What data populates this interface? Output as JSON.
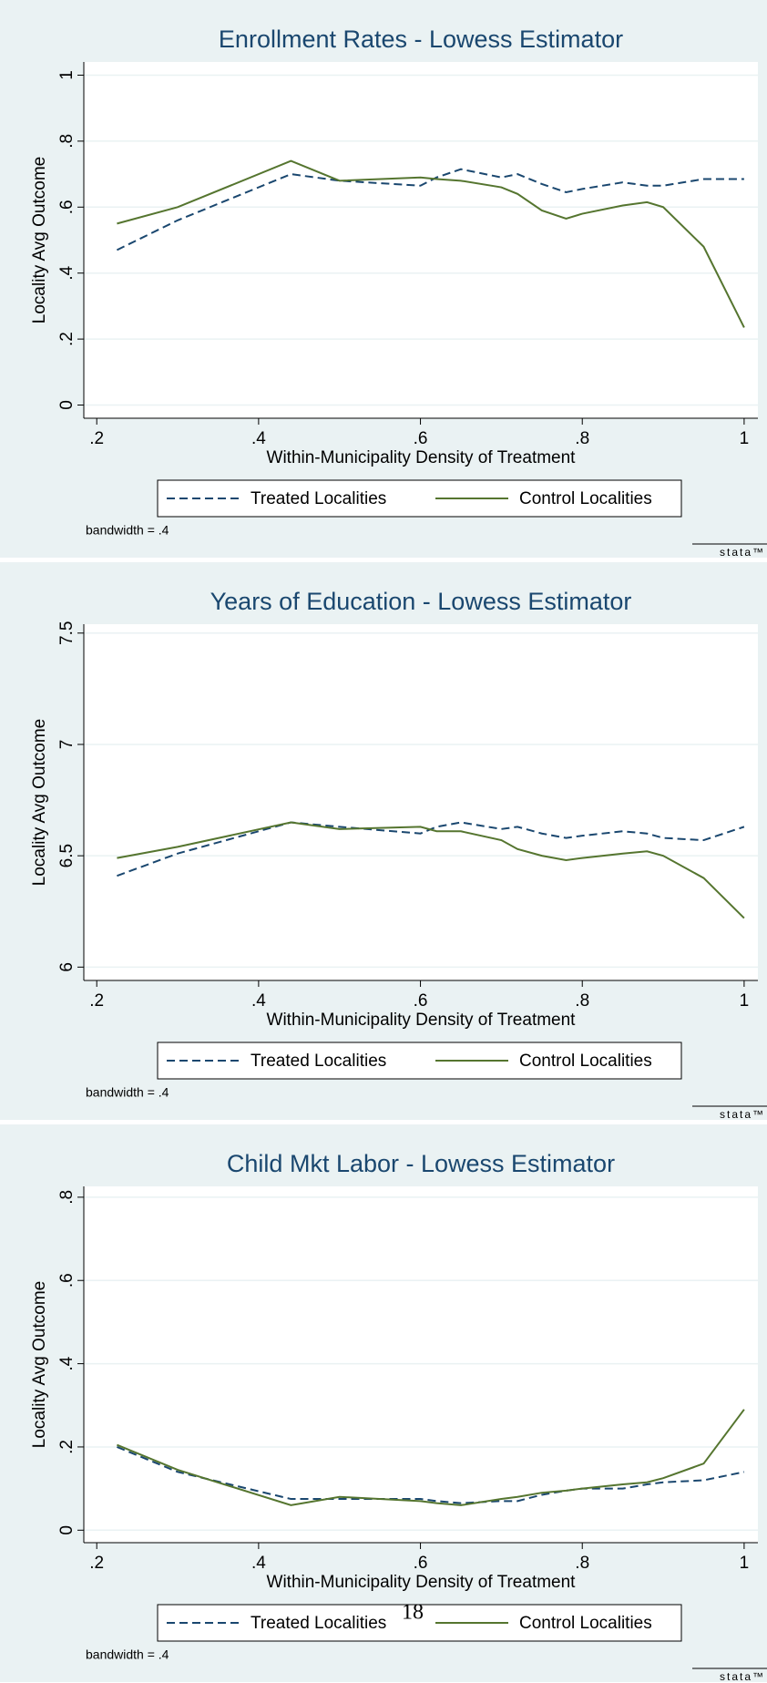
{
  "chart_data": [
    {
      "type": "line",
      "title": "Enrollment Rates - Lowess Estimator",
      "xlabel": "Within-Municipality Density of Treatment",
      "ylabel": "Locality Avg Outcome",
      "note": "bandwidth = .4",
      "logo": "stata™",
      "x": [
        0.225,
        0.3,
        0.44,
        0.5,
        0.6,
        0.62,
        0.65,
        0.7,
        0.72,
        0.75,
        0.78,
        0.8,
        0.85,
        0.88,
        0.9,
        0.95,
        1.0
      ],
      "series": [
        {
          "name": "Treated Localities",
          "color": "#1a476f",
          "dashed": true,
          "values": [
            0.47,
            0.56,
            0.7,
            0.68,
            0.665,
            0.69,
            0.715,
            0.69,
            0.7,
            0.67,
            0.645,
            0.655,
            0.675,
            0.665,
            0.665,
            0.685,
            0.685
          ]
        },
        {
          "name": "Control Localities",
          "color": "#55752f",
          "dashed": false,
          "values": [
            0.55,
            0.6,
            0.74,
            0.68,
            0.69,
            0.685,
            0.68,
            0.66,
            0.64,
            0.59,
            0.565,
            0.58,
            0.605,
            0.615,
            0.6,
            0.48,
            0.235
          ]
        }
      ],
      "xlim": [
        0.184,
        1.017
      ],
      "xticks": [
        {
          "value": 0.2,
          "label": ".2"
        },
        {
          "value": 0.4,
          "label": ".4"
        },
        {
          "value": 0.6,
          "label": ".6"
        },
        {
          "value": 0.8,
          "label": ".8"
        },
        1
      ],
      "ylim": [
        -0.04,
        1.04
      ],
      "yticks": [
        0,
        {
          "value": 0.2,
          "label": ".2"
        },
        {
          "value": 0.4,
          "label": ".4"
        },
        {
          "value": 0.6,
          "label": ".6"
        },
        {
          "value": 0.8,
          "label": ".8"
        },
        1
      ],
      "grid": true
    },
    {
      "type": "line",
      "title": "Years of Education - Lowess Estimator",
      "xlabel": "Within-Municipality Density of Treatment",
      "ylabel": "Locality Avg Outcome",
      "note": "bandwidth = .4",
      "logo": "stata™",
      "x": [
        0.225,
        0.3,
        0.44,
        0.5,
        0.6,
        0.62,
        0.65,
        0.7,
        0.72,
        0.75,
        0.78,
        0.8,
        0.85,
        0.88,
        0.9,
        0.95,
        1.0
      ],
      "series": [
        {
          "name": "Treated Localities",
          "color": "#1a476f",
          "dashed": true,
          "values": [
            6.41,
            6.51,
            6.65,
            6.63,
            6.6,
            6.63,
            6.65,
            6.62,
            6.63,
            6.6,
            6.58,
            6.59,
            6.61,
            6.6,
            6.58,
            6.57,
            6.63
          ]
        },
        {
          "name": "Control Localities",
          "color": "#55752f",
          "dashed": false,
          "values": [
            6.49,
            6.54,
            6.65,
            6.62,
            6.63,
            6.61,
            6.61,
            6.57,
            6.53,
            6.5,
            6.48,
            6.49,
            6.51,
            6.52,
            6.5,
            6.4,
            6.22
          ]
        }
      ],
      "xlim": [
        0.184,
        1.017
      ],
      "xticks": [
        {
          "value": 0.2,
          "label": ".2"
        },
        {
          "value": 0.4,
          "label": ".4"
        },
        {
          "value": 0.6,
          "label": ".6"
        },
        {
          "value": 0.8,
          "label": ".8"
        },
        1
      ],
      "ylim": [
        5.94,
        7.54
      ],
      "yticks": [
        6,
        6.5,
        7,
        7.5
      ],
      "grid": true
    },
    {
      "type": "line",
      "title": "Child Mkt Labor - Lowess Estimator",
      "xlabel": "Within-Municipality Density of Treatment",
      "ylabel": "Locality Avg Outcome",
      "note": "bandwidth = .4",
      "logo": "stata™",
      "x": [
        0.225,
        0.3,
        0.44,
        0.5,
        0.6,
        0.62,
        0.65,
        0.7,
        0.72,
        0.75,
        0.78,
        0.8,
        0.85,
        0.88,
        0.9,
        0.95,
        1.0
      ],
      "series": [
        {
          "name": "Treated Localities",
          "color": "#1a476f",
          "dashed": true,
          "values": [
            0.2,
            0.14,
            0.075,
            0.075,
            0.075,
            0.07,
            0.065,
            0.07,
            0.07,
            0.085,
            0.095,
            0.1,
            0.1,
            0.11,
            0.115,
            0.12,
            0.14
          ]
        },
        {
          "name": "Control Localities",
          "color": "#55752f",
          "dashed": false,
          "values": [
            0.205,
            0.145,
            0.06,
            0.08,
            0.07,
            0.065,
            0.06,
            0.075,
            0.08,
            0.09,
            0.095,
            0.1,
            0.11,
            0.115,
            0.125,
            0.16,
            0.29
          ]
        }
      ],
      "xlim": [
        0.184,
        1.017
      ],
      "xticks": [
        {
          "value": 0.2,
          "label": ".2"
        },
        {
          "value": 0.4,
          "label": ".4"
        },
        {
          "value": 0.6,
          "label": ".6"
        },
        {
          "value": 0.8,
          "label": ".8"
        },
        1
      ],
      "ylim": [
        -0.03,
        0.826
      ],
      "yticks": [
        0,
        {
          "value": 0.2,
          "label": ".2"
        },
        {
          "value": 0.4,
          "label": ".4"
        },
        {
          "value": 0.6,
          "label": ".6"
        },
        {
          "value": 0.8,
          "label": ".8"
        }
      ],
      "grid": true
    }
  ],
  "page_number": "18"
}
